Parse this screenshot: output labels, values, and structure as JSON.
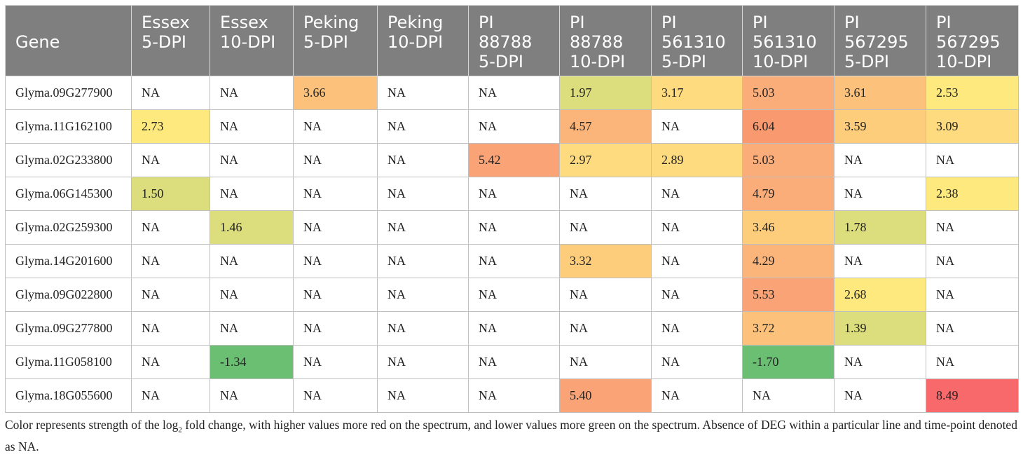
{
  "table": {
    "headers": [
      [
        "Gene"
      ],
      [
        "Essex",
        "5-DPI"
      ],
      [
        "Essex",
        "10-DPI"
      ],
      [
        "Peking",
        "5-DPI"
      ],
      [
        "Peking",
        "10-DPI"
      ],
      [
        "PI",
        "88788",
        "5-DPI"
      ],
      [
        "PI",
        "88788",
        "10-DPI"
      ],
      [
        "PI",
        "561310",
        "5-DPI"
      ],
      [
        "PI",
        "561310",
        "10-DPI"
      ],
      [
        "PI",
        "567295",
        "5-DPI"
      ],
      [
        "PI",
        "567295",
        "10-DPI"
      ]
    ],
    "rows": [
      {
        "gene": "Glyma.09G277900",
        "values": [
          "NA",
          "NA",
          "3.66",
          "NA",
          "NA",
          "1.97",
          "3.17",
          "5.03",
          "3.61",
          "2.53"
        ]
      },
      {
        "gene": "Glyma.11G162100",
        "values": [
          "2.73",
          "NA",
          "NA",
          "NA",
          "NA",
          "4.57",
          "NA",
          "6.04",
          "3.59",
          "3.09"
        ]
      },
      {
        "gene": "Glyma.02G233800",
        "values": [
          "NA",
          "NA",
          "NA",
          "NA",
          "5.42",
          "2.97",
          "2.89",
          "5.03",
          "NA",
          "NA"
        ]
      },
      {
        "gene": "Glyma.06G145300",
        "values": [
          "1.50",
          "NA",
          "NA",
          "NA",
          "NA",
          "NA",
          "NA",
          "4.79",
          "NA",
          "2.38"
        ]
      },
      {
        "gene": "Glyma.02G259300",
        "values": [
          "NA",
          "1.46",
          "NA",
          "NA",
          "NA",
          "NA",
          "NA",
          "3.46",
          "1.78",
          "NA"
        ]
      },
      {
        "gene": "Glyma.14G201600",
        "values": [
          "NA",
          "NA",
          "NA",
          "NA",
          "NA",
          "3.32",
          "NA",
          "4.29",
          "NA",
          "NA"
        ]
      },
      {
        "gene": "Glyma.09G022800",
        "values": [
          "NA",
          "NA",
          "NA",
          "NA",
          "NA",
          "NA",
          "NA",
          "5.53",
          "2.68",
          "NA"
        ]
      },
      {
        "gene": "Glyma.09G277800",
        "values": [
          "NA",
          "NA",
          "NA",
          "NA",
          "NA",
          "NA",
          "NA",
          "3.72",
          "1.39",
          "NA"
        ]
      },
      {
        "gene": "Glyma.11G058100",
        "values": [
          "NA",
          "-1.34",
          "NA",
          "NA",
          "NA",
          "NA",
          "NA",
          "-1.70",
          "NA",
          "NA"
        ]
      },
      {
        "gene": "Glyma.18G055600",
        "values": [
          "NA",
          "NA",
          "NA",
          "NA",
          "NA",
          "5.40",
          "NA",
          "NA",
          "NA",
          "8.49"
        ]
      }
    ],
    "colors": {
      "header_bg": "#7f7f7f",
      "na_bg": "#ffffff",
      "scale": [
        {
          "min": -99,
          "color": "#6bbf73"
        },
        {
          "min": 1.3,
          "color": "#dcdd7c"
        },
        {
          "min": 2.3,
          "color": "#fde97e"
        },
        {
          "min": 2.85,
          "color": "#fedb7e"
        },
        {
          "min": 3.3,
          "color": "#fdcd7c"
        },
        {
          "min": 3.6,
          "color": "#fcc27b"
        },
        {
          "min": 4.2,
          "color": "#fbb479"
        },
        {
          "min": 4.7,
          "color": "#faad78"
        },
        {
          "min": 5.3,
          "color": "#f9a376"
        },
        {
          "min": 6.0,
          "color": "#f8996f"
        },
        {
          "min": 8.0,
          "color": "#f8696b"
        }
      ]
    }
  },
  "caption": {
    "part1": "Color represents strength of the log",
    "sub": "2",
    "part2": " fold change, with higher values more red on the spectrum, and lower values more green on the spectrum. Absence of DEG within a particular line and time-point denoted as NA."
  }
}
